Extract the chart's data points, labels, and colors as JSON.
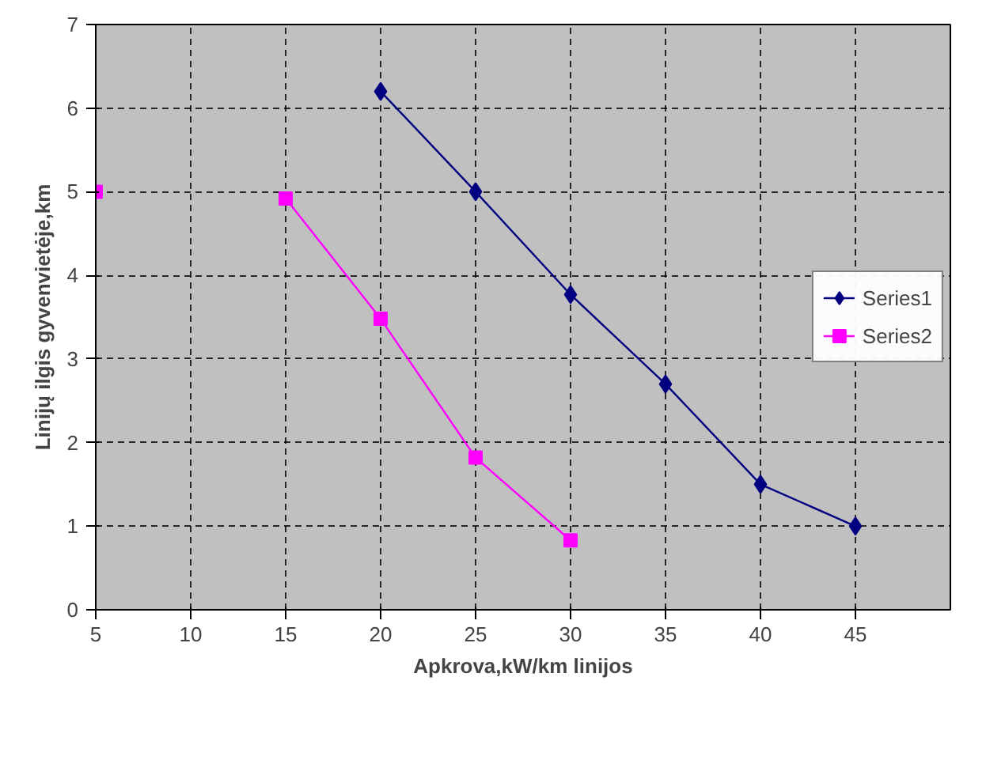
{
  "chart_data": {
    "type": "line",
    "xlabel": "Apkrova,kW/km linijos",
    "ylabel": "Linijų ilgis gyvenvietėje,km",
    "xlim": [
      5,
      50
    ],
    "xticks": [
      5,
      10,
      15,
      20,
      25,
      30,
      35,
      40,
      45
    ],
    "ylim": [
      0,
      7
    ],
    "yticks": [
      0,
      1,
      2,
      3,
      4,
      5,
      6,
      7
    ],
    "grid": true,
    "legend": "right",
    "line_style": "solid",
    "series": [
      {
        "name": "Series1",
        "color": "#000080",
        "marker": "diamond",
        "x": [
          20,
          25,
          30,
          35,
          40,
          45
        ],
        "values": [
          6.2,
          5.0,
          3.77,
          2.7,
          1.5,
          1.0
        ]
      },
      {
        "name": "Series2",
        "color": "#ff00ff",
        "marker": "square",
        "x": [
          5,
          10,
          15,
          20,
          25,
          30
        ],
        "values": [
          5.0,
          null,
          4.92,
          3.48,
          1.82,
          0.83
        ]
      }
    ]
  }
}
